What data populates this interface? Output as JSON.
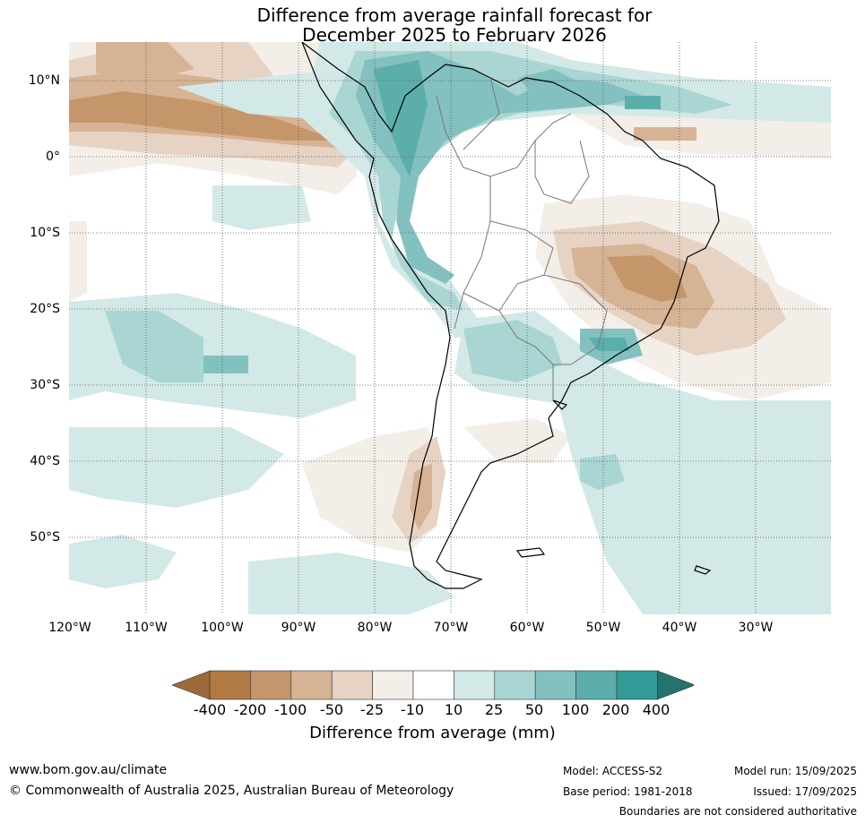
{
  "title_line1": "Difference from average rainfall forecast for",
  "title_line2": "December 2025 to February 2026",
  "lat_labels": [
    "10°N",
    "0°",
    "10°S",
    "20°S",
    "30°S",
    "40°S",
    "50°S"
  ],
  "lon_labels": [
    "120°W",
    "110°W",
    "100°W",
    "90°W",
    "80°W",
    "70°W",
    "60°W",
    "50°W",
    "40°W",
    "30°W"
  ],
  "colorbar": {
    "ticks": [
      "-400",
      "-200",
      "-100",
      "-50",
      "-25",
      "-10",
      "10",
      "25",
      "50",
      "100",
      "200",
      "400"
    ],
    "colors": [
      "#9c6a3a",
      "#b07a42",
      "#c4966a",
      "#d6b394",
      "#e6d3c3",
      "#f3eee8",
      "#ffffff",
      "#d3e9e7",
      "#a9d5d3",
      "#82c1bf",
      "#5caeab",
      "#339b97",
      "#25736f"
    ],
    "label": "Difference from average (mm)"
  },
  "footer": {
    "url": "www.bom.gov.au/climate",
    "copyright": "© Commonwealth of Australia 2025, Australian Bureau of Meteorology",
    "model": "Model: ACCESS-S2",
    "base_period": "Base period: 1981-2018",
    "model_run": "Model run: 15/09/2025",
    "issued": "Issued: 17/09/2025",
    "disclaimer": "Boundaries are not considered authoritative"
  }
}
